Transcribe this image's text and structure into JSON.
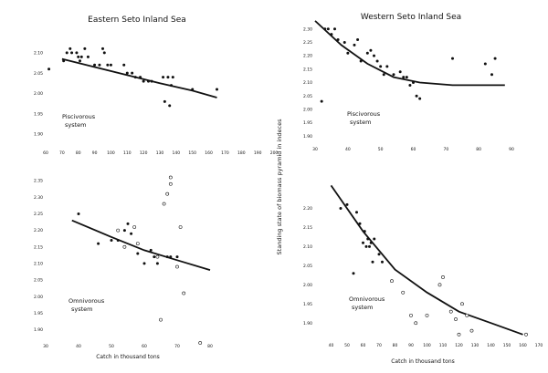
{
  "figure": {
    "title_left": "Eastern Seto Inland Sea",
    "title_right": "Western Seto Inland Sea",
    "ylabel": "Standing state of biomass pyramid in indeces",
    "xlabel": "Catch in thousand tons"
  },
  "chart_data": [
    {
      "type": "scatter",
      "panel": "top-left",
      "title": "Eastern Seto Inland Sea",
      "annotation": [
        "Piscivorous",
        "system"
      ],
      "xlim": [
        60,
        200
      ],
      "ylim": [
        1.86,
        2.14
      ],
      "xticks": [
        60,
        70,
        80,
        90,
        100,
        110,
        120,
        130,
        140,
        150,
        160,
        170,
        180,
        190,
        200
      ],
      "xticklabels": [
        "60",
        "70",
        "80",
        "90",
        "100",
        "110",
        "120",
        "130",
        "140",
        "150",
        "160",
        "170",
        "180",
        "190",
        "200"
      ],
      "yticks": [
        1.9,
        1.95,
        2.0,
        2.05,
        2.1
      ],
      "yticklabels": [
        "1.90",
        "1.95",
        "2.00",
        "2.05",
        "2.10"
      ],
      "points_filled": [
        [
          62,
          2.06
        ],
        [
          71,
          2.08
        ],
        [
          73,
          2.1
        ],
        [
          75,
          2.11
        ],
        [
          76,
          2.1
        ],
        [
          79,
          2.1
        ],
        [
          80,
          2.09
        ],
        [
          81,
          2.08
        ],
        [
          82,
          2.09
        ],
        [
          84,
          2.11
        ],
        [
          86,
          2.09
        ],
        [
          90,
          2.07
        ],
        [
          93,
          2.07
        ],
        [
          95,
          2.11
        ],
        [
          96,
          2.1
        ],
        [
          98,
          2.07
        ],
        [
          100,
          2.07
        ],
        [
          108,
          2.07
        ],
        [
          110,
          2.05
        ],
        [
          113,
          2.05
        ],
        [
          115,
          2.04
        ],
        [
          118,
          2.04
        ],
        [
          120,
          2.03
        ],
        [
          123,
          2.03
        ],
        [
          125,
          2.03
        ],
        [
          132,
          2.04
        ],
        [
          133,
          1.98
        ],
        [
          135,
          2.04
        ],
        [
          136,
          1.97
        ],
        [
          137,
          2.02
        ],
        [
          138,
          2.04
        ],
        [
          150,
          2.01
        ],
        [
          165,
          2.01
        ]
      ],
      "points_open": [],
      "fit_curve": [
        [
          70,
          2.085
        ],
        [
          90,
          2.065
        ],
        [
          110,
          2.045
        ],
        [
          130,
          2.025
        ],
        [
          150,
          2.007
        ],
        [
          165,
          1.99
        ]
      ]
    },
    {
      "type": "scatter",
      "panel": "top-right",
      "title": "Western Seto Inland Sea",
      "annotation": [
        "Piscivorous",
        "system"
      ],
      "xlim": [
        30,
        90
      ],
      "ylim": [
        1.86,
        2.34
      ],
      "xticks": [
        30,
        40,
        50,
        60,
        70,
        80,
        90
      ],
      "xticklabels": [
        "30",
        "40",
        "50",
        "60",
        "70",
        "80",
        "90"
      ],
      "yticks": [
        1.9,
        1.95,
        2.0,
        2.05,
        2.1,
        2.15,
        2.2,
        2.25,
        2.3
      ],
      "yticklabels": [
        "1.90",
        "1.95",
        "2.00",
        "2.05",
        "2.10",
        "2.15",
        "2.20",
        "2.25",
        "2.30"
      ],
      "points_filled": [
        [
          32,
          2.03
        ],
        [
          33,
          2.3
        ],
        [
          34,
          2.3
        ],
        [
          35,
          2.28
        ],
        [
          36,
          2.3
        ],
        [
          37,
          2.26
        ],
        [
          39,
          2.25
        ],
        [
          40,
          2.21
        ],
        [
          42,
          2.24
        ],
        [
          43,
          2.26
        ],
        [
          44,
          2.18
        ],
        [
          46,
          2.21
        ],
        [
          47,
          2.22
        ],
        [
          48,
          2.2
        ],
        [
          49,
          2.18
        ],
        [
          50,
          2.16
        ],
        [
          51,
          2.13
        ],
        [
          52,
          2.16
        ],
        [
          54,
          2.13
        ],
        [
          56,
          2.14
        ],
        [
          57,
          2.12
        ],
        [
          58,
          2.12
        ],
        [
          59,
          2.09
        ],
        [
          60,
          2.1
        ],
        [
          61,
          2.05
        ],
        [
          62,
          2.04
        ],
        [
          72,
          2.19
        ],
        [
          82,
          2.17
        ],
        [
          84,
          2.13
        ],
        [
          85,
          2.19
        ]
      ],
      "points_open": [],
      "fit_curve": [
        [
          30,
          2.33
        ],
        [
          38,
          2.24
        ],
        [
          46,
          2.17
        ],
        [
          54,
          2.12
        ],
        [
          62,
          2.1
        ],
        [
          72,
          2.09
        ],
        [
          88,
          2.09
        ]
      ]
    },
    {
      "type": "scatter",
      "panel": "bottom-left",
      "annotation": [
        "Omnivorous",
        "system"
      ],
      "xlim": [
        30,
        80
      ],
      "ylim": [
        1.86,
        2.4
      ],
      "xticks": [
        30,
        40,
        50,
        60,
        70,
        80
      ],
      "xticklabels": [
        "30",
        "40",
        "50",
        "60",
        "70",
        "80"
      ],
      "yticks": [
        1.9,
        1.95,
        2.0,
        2.05,
        2.1,
        2.15,
        2.2,
        2.25,
        2.3,
        2.35
      ],
      "yticklabels": [
        "1.90",
        "1.95",
        "2.00",
        "2.05",
        "2.10",
        "2.15",
        "2.20",
        "2.25",
        "2.30",
        "2.35"
      ],
      "points_filled": [
        [
          40,
          2.25
        ],
        [
          46,
          2.16
        ],
        [
          50,
          2.17
        ],
        [
          52,
          2.17
        ],
        [
          54,
          2.2
        ],
        [
          55,
          2.22
        ],
        [
          56,
          2.19
        ],
        [
          58,
          2.13
        ],
        [
          60,
          2.1
        ],
        [
          62,
          2.14
        ],
        [
          63,
          2.12
        ],
        [
          64,
          2.1
        ],
        [
          67,
          2.12
        ],
        [
          68,
          2.12
        ],
        [
          70,
          2.12
        ]
      ],
      "points_open": [
        [
          52,
          2.2
        ],
        [
          54,
          2.15
        ],
        [
          57,
          2.21
        ],
        [
          58,
          2.16
        ],
        [
          64,
          2.12
        ],
        [
          65,
          1.93
        ],
        [
          66,
          2.28
        ],
        [
          67,
          2.31
        ],
        [
          68,
          2.36
        ],
        [
          68,
          2.34
        ],
        [
          70,
          2.09
        ],
        [
          71,
          2.21
        ],
        [
          72,
          2.01
        ],
        [
          77,
          1.86
        ]
      ],
      "fit_curve": [
        [
          38,
          2.23
        ],
        [
          50,
          2.18
        ],
        [
          60,
          2.14
        ],
        [
          70,
          2.11
        ],
        [
          80,
          2.08
        ]
      ]
    },
    {
      "type": "scatter",
      "panel": "bottom-right",
      "annotation": [
        "Omnivorous",
        "system"
      ],
      "xlim": [
        30,
        170
      ],
      "ylim": [
        1.86,
        2.28
      ],
      "xticks": [
        40,
        50,
        60,
        70,
        80,
        90,
        100,
        110,
        120,
        130,
        140,
        150,
        160,
        170
      ],
      "xticklabels": [
        "40",
        "50",
        "60",
        "70",
        "80",
        "90",
        "100",
        "110",
        "120",
        "130",
        "140",
        "150",
        "160",
        "170"
      ],
      "yticks": [
        1.9,
        1.95,
        2.0,
        2.05,
        2.1,
        2.15,
        2.2
      ],
      "yticklabels": [
        "1.90",
        "1.95",
        "2.00",
        "2.05",
        "2.10",
        "2.15",
        "2.20"
      ],
      "points_filled": [
        [
          46,
          2.2
        ],
        [
          50,
          2.21
        ],
        [
          54,
          2.03
        ],
        [
          56,
          2.19
        ],
        [
          58,
          2.16
        ],
        [
          60,
          2.11
        ],
        [
          61,
          2.14
        ],
        [
          62,
          2.1
        ],
        [
          63,
          2.12
        ],
        [
          64,
          2.1
        ],
        [
          65,
          2.11
        ],
        [
          66,
          2.06
        ],
        [
          67,
          2.12
        ],
        [
          70,
          2.08
        ],
        [
          72,
          2.06
        ]
      ],
      "points_open": [
        [
          78,
          2.01
        ],
        [
          85,
          1.98
        ],
        [
          90,
          1.92
        ],
        [
          93,
          1.9
        ],
        [
          100,
          1.92
        ],
        [
          108,
          2.0
        ],
        [
          110,
          2.02
        ],
        [
          115,
          1.93
        ],
        [
          118,
          1.91
        ],
        [
          120,
          1.87
        ],
        [
          122,
          1.95
        ],
        [
          125,
          1.92
        ],
        [
          128,
          1.88
        ],
        [
          162,
          1.87
        ]
      ],
      "fit_curve": [
        [
          40,
          2.26
        ],
        [
          60,
          2.14
        ],
        [
          80,
          2.04
        ],
        [
          100,
          1.98
        ],
        [
          120,
          1.93
        ],
        [
          140,
          1.9
        ],
        [
          160,
          1.87
        ]
      ]
    }
  ]
}
